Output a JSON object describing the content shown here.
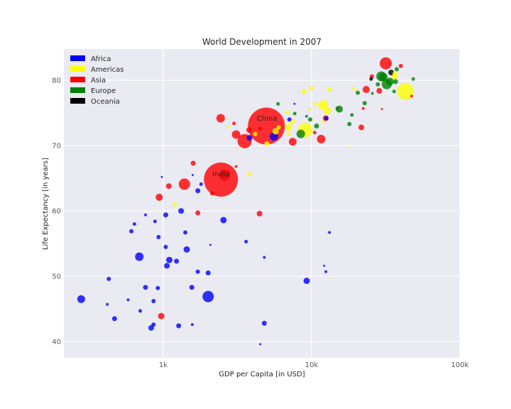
{
  "chart_data": {
    "type": "scatter",
    "title": "World Development in 2007",
    "xlabel": "GDP per Capita [in USD]",
    "ylabel": "Life Expectancy [in years]",
    "xscale": "log",
    "xlim": [
      214,
      100000
    ],
    "ylim": [
      37.5,
      84.8
    ],
    "xticks": [
      {
        "value": 1000,
        "label": "1k"
      },
      {
        "value": 10000,
        "label": "10k"
      },
      {
        "value": 100000,
        "label": "100k"
      }
    ],
    "yticks": [
      40,
      50,
      60,
      70,
      80
    ],
    "grid": true,
    "background": "#EAEAF2",
    "legend": {
      "position": "upper left",
      "entries": [
        {
          "label": "Africa",
          "color": "#0000FF"
        },
        {
          "label": "Americas",
          "color": "#FFFF00"
        },
        {
          "label": "Asia",
          "color": "#FF0000"
        },
        {
          "label": "Europe",
          "color": "#008000"
        },
        {
          "label": "Oceania",
          "color": "#000000"
        }
      ]
    },
    "annotations": [
      {
        "text": "China",
        "gdp": 5000,
        "life": 73.8
      },
      {
        "text": "India",
        "gdp": 2450,
        "life": 65.3
      }
    ],
    "size_note": "bubble radius in pixels approximates population",
    "points": [
      {
        "c": "Asia",
        "gdp": 4960,
        "life": 73.0,
        "r": 26
      },
      {
        "c": "Asia",
        "gdp": 2450,
        "life": 64.8,
        "r": 24
      },
      {
        "c": "Americas",
        "gdp": 42950,
        "life": 78.3,
        "r": 12
      },
      {
        "c": "Asia",
        "gdp": 3540,
        "life": 70.7,
        "r": 10
      },
      {
        "c": "Americas",
        "gdp": 9070,
        "life": 72.4,
        "r": 10
      },
      {
        "c": "Asia",
        "gdp": 31660,
        "life": 82.6,
        "r": 8.5
      },
      {
        "c": "Asia",
        "gdp": 2600,
        "life": 65.5,
        "r": 8
      },
      {
        "c": "Asia",
        "gdp": 1390,
        "life": 64.1,
        "r": 8
      },
      {
        "c": "Africa",
        "gdp": 2010,
        "life": 46.9,
        "r": 8
      },
      {
        "c": "Africa",
        "gdp": 690,
        "life": 53.0,
        "r": 6
      },
      {
        "c": "Africa",
        "gdp": 280,
        "life": 46.5,
        "r": 5.5
      },
      {
        "c": "Europe",
        "gdp": 32170,
        "life": 79.4,
        "r": 7
      },
      {
        "c": "Europe",
        "gdp": 29500,
        "life": 80.6,
        "r": 7
      },
      {
        "c": "Europe",
        "gdp": 30500,
        "life": 80.5,
        "r": 6
      },
      {
        "c": "Europe",
        "gdp": 8460,
        "life": 71.8,
        "r": 6
      },
      {
        "c": "Africa",
        "gdp": 5580,
        "life": 71.4,
        "r": 6
      },
      {
        "c": "Americas",
        "gdp": 12000,
        "life": 76.2,
        "r": 7
      },
      {
        "c": "Asia",
        "gdp": 2440,
        "life": 74.2,
        "r": 6
      },
      {
        "c": "Asia",
        "gdp": 3100,
        "life": 71.7,
        "r": 6
      },
      {
        "c": "Asia",
        "gdp": 11600,
        "life": 71.0,
        "r": 6
      },
      {
        "c": "Asia",
        "gdp": 7460,
        "life": 70.6,
        "r": 5.5
      },
      {
        "c": "Americas",
        "gdp": 36300,
        "life": 80.7,
        "r": 5
      },
      {
        "c": "Americas",
        "gdp": 7000,
        "life": 72.8,
        "r": 5
      },
      {
        "c": "Americas",
        "gdp": 12800,
        "life": 75.3,
        "r": 5
      },
      {
        "c": "Europe",
        "gdp": 15400,
        "life": 75.6,
        "r": 5
      },
      {
        "c": "Europe",
        "gdp": 33700,
        "life": 79.8,
        "r": 5.5
      },
      {
        "c": "Oceania",
        "gdp": 34400,
        "life": 81.2,
        "r": 4
      },
      {
        "c": "Asia",
        "gdp": 23350,
        "life": 78.6,
        "r": 5
      },
      {
        "c": "Asia",
        "gdp": 28600,
        "life": 78.4,
        "r": 4
      },
      {
        "c": "Asia",
        "gdp": 12450,
        "life": 74.2,
        "r": 4
      },
      {
        "c": "Asia",
        "gdp": 21650,
        "life": 72.8,
        "r": 4
      },
      {
        "c": "Asia",
        "gdp": 3800,
        "life": 72.4,
        "r": 4
      },
      {
        "c": "Asia",
        "gdp": 4460,
        "life": 59.6,
        "r": 4
      },
      {
        "c": "Asia",
        "gdp": 940,
        "life": 62.1,
        "r": 5
      },
      {
        "c": "Asia",
        "gdp": 1090,
        "life": 63.8,
        "r": 4
      },
      {
        "c": "Asia",
        "gdp": 1590,
        "life": 67.3,
        "r": 3.5
      },
      {
        "c": "Asia",
        "gdp": 2140,
        "life": 62.7,
        "r": 3
      },
      {
        "c": "Asia",
        "gdp": 970,
        "life": 43.9,
        "r": 4.5
      },
      {
        "c": "Asia",
        "gdp": 1710,
        "life": 59.7,
        "r": 3.5
      },
      {
        "c": "Asia",
        "gdp": 25500,
        "life": 80.6,
        "r": 3
      },
      {
        "c": "Asia",
        "gdp": 40000,
        "life": 82.2,
        "r": 3
      },
      {
        "c": "Asia",
        "gdp": 3000,
        "life": 73.4,
        "r": 2.5
      },
      {
        "c": "Asia",
        "gdp": 22300,
        "life": 75.7,
        "r": 2
      },
      {
        "c": "Asia",
        "gdp": 29800,
        "life": 75.6,
        "r": 1.5
      },
      {
        "c": "Asia",
        "gdp": 47300,
        "life": 77.6,
        "r": 2
      },
      {
        "c": "Asia",
        "gdp": 4500,
        "life": 72.6,
        "r": 3
      },
      {
        "c": "Asia",
        "gdp": 3100,
        "life": 66.8,
        "r": 2
      },
      {
        "c": "Asia",
        "gdp": 10500,
        "life": 72.0,
        "r": 2.5
      },
      {
        "c": "Americas",
        "gdp": 5720,
        "life": 72.2,
        "r": 4.5
      },
      {
        "c": "Americas",
        "gdp": 7400,
        "life": 73.7,
        "r": 4
      },
      {
        "c": "Americas",
        "gdp": 6000,
        "life": 72.8,
        "r": 3
      },
      {
        "c": "Americas",
        "gdp": 10000,
        "life": 78.8,
        "r": 3
      },
      {
        "c": "Americas",
        "gdp": 8900,
        "life": 78.3,
        "r": 3.5
      },
      {
        "c": "Americas",
        "gdp": 13200,
        "life": 78.6,
        "r": 3.5
      },
      {
        "c": "Americas",
        "gdp": 36300,
        "life": 81.0,
        "r": 3
      },
      {
        "c": "Americas",
        "gdp": 3820,
        "life": 65.6,
        "r": 3
      },
      {
        "c": "Americas",
        "gdp": 1200,
        "life": 61.0,
        "r": 3
      },
      {
        "c": "Americas",
        "gdp": 5000,
        "life": 70.3,
        "r": 3.5
      },
      {
        "c": "Americas",
        "gdp": 4170,
        "life": 71.8,
        "r": 3
      },
      {
        "c": "Americas",
        "gdp": 6870,
        "life": 75.1,
        "r": 3
      },
      {
        "c": "Americas",
        "gdp": 10600,
        "life": 76.4,
        "r": 2.5
      },
      {
        "c": "Americas",
        "gdp": 18000,
        "life": 69.8,
        "r": 1.5
      },
      {
        "c": "Americas",
        "gdp": 19300,
        "life": 78.7,
        "r": 2.5
      },
      {
        "c": "Americas",
        "gdp": 9800,
        "life": 75.6,
        "r": 2
      },
      {
        "c": "Americas",
        "gdp": 11900,
        "life": 73.7,
        "r": 2
      },
      {
        "c": "Americas",
        "gdp": 2750,
        "life": 72.9,
        "r": 2
      },
      {
        "c": "Americas",
        "gdp": 7010,
        "life": 71.8,
        "r": 2.5
      },
      {
        "c": "Europe",
        "gdp": 10800,
        "life": 73.0,
        "r": 3.5
      },
      {
        "c": "Europe",
        "gdp": 18000,
        "life": 73.3,
        "r": 3
      },
      {
        "c": "Europe",
        "gdp": 20500,
        "life": 78.1,
        "r": 3
      },
      {
        "c": "Europe",
        "gdp": 22800,
        "life": 76.5,
        "r": 3
      },
      {
        "c": "Europe",
        "gdp": 28000,
        "life": 79.4,
        "r": 3
      },
      {
        "c": "Europe",
        "gdp": 36800,
        "life": 79.8,
        "r": 3.5
      },
      {
        "c": "Europe",
        "gdp": 37500,
        "life": 81.7,
        "r": 3
      },
      {
        "c": "Europe",
        "gdp": 48500,
        "life": 80.2,
        "r": 2.5
      },
      {
        "c": "Europe",
        "gdp": 36000,
        "life": 78.3,
        "r": 2.5
      },
      {
        "c": "Europe",
        "gdp": 9800,
        "life": 74.0,
        "r": 3
      },
      {
        "c": "Europe",
        "gdp": 7700,
        "life": 74.9,
        "r": 2.5
      },
      {
        "c": "Europe",
        "gdp": 5940,
        "life": 76.4,
        "r": 2.5
      },
      {
        "c": "Europe",
        "gdp": 9250,
        "life": 74.5,
        "r": 2
      },
      {
        "c": "Europe",
        "gdp": 18700,
        "life": 74.7,
        "r": 2.5
      },
      {
        "c": "Europe",
        "gdp": 25700,
        "life": 78.0,
        "r": 2
      },
      {
        "c": "Europe",
        "gdp": 14900,
        "life": 75.7,
        "r": 2.5
      },
      {
        "c": "Oceania",
        "gdp": 25200,
        "life": 80.2,
        "r": 2.5
      },
      {
        "c": "Africa",
        "gdp": 3820,
        "life": 71.2,
        "r": 4
      },
      {
        "c": "Africa",
        "gdp": 7090,
        "life": 74.0,
        "r": 3
      },
      {
        "c": "Africa",
        "gdp": 7670,
        "life": 76.4,
        "r": 1.5
      },
      {
        "c": "Africa",
        "gdp": 12600,
        "life": 74.2,
        "r": 3
      },
      {
        "c": "Africa",
        "gdp": 9270,
        "life": 49.3,
        "r": 4.5
      },
      {
        "c": "Africa",
        "gdp": 2550,
        "life": 58.6,
        "r": 4.5
      },
      {
        "c": "Africa",
        "gdp": 1440,
        "life": 54.1,
        "r": 4.5
      },
      {
        "c": "Africa",
        "gdp": 1320,
        "life": 60.0,
        "r": 4
      },
      {
        "c": "Africa",
        "gdp": 1040,
        "life": 59.4,
        "r": 3.5
      },
      {
        "c": "Africa",
        "gdp": 1710,
        "life": 63.1,
        "r": 3.5
      },
      {
        "c": "Africa",
        "gdp": 1800,
        "life": 64.1,
        "r": 2.5
      },
      {
        "c": "Africa",
        "gdp": 1100,
        "life": 52.5,
        "r": 4.5
      },
      {
        "c": "Africa",
        "gdp": 1060,
        "life": 51.6,
        "r": 4
      },
      {
        "c": "Africa",
        "gdp": 1230,
        "life": 52.3,
        "r": 3.5
      },
      {
        "c": "Africa",
        "gdp": 1560,
        "life": 48.3,
        "r": 3.5
      },
      {
        "c": "Africa",
        "gdp": 1710,
        "life": 50.7,
        "r": 3
      },
      {
        "c": "Africa",
        "gdp": 2010,
        "life": 50.5,
        "r": 3.5
      },
      {
        "c": "Africa",
        "gdp": 1410,
        "life": 56.7,
        "r": 3
      },
      {
        "c": "Africa",
        "gdp": 930,
        "life": 56.0,
        "r": 3
      },
      {
        "c": "Africa",
        "gdp": 1040,
        "life": 54.5,
        "r": 3
      },
      {
        "c": "Africa",
        "gdp": 880,
        "life": 58.4,
        "r": 2.5
      },
      {
        "c": "Africa",
        "gdp": 610,
        "life": 56.9,
        "r": 3
      },
      {
        "c": "Africa",
        "gdp": 640,
        "life": 58.0,
        "r": 2.5
      },
      {
        "c": "Africa",
        "gdp": 760,
        "life": 59.4,
        "r": 2
      },
      {
        "c": "Africa",
        "gdp": 980,
        "life": 65.2,
        "r": 1.5
      },
      {
        "c": "Africa",
        "gdp": 1580,
        "life": 65.5,
        "r": 1.5
      },
      {
        "c": "Africa",
        "gdp": 3620,
        "life": 55.3,
        "r": 2.5
      },
      {
        "c": "Africa",
        "gdp": 2080,
        "life": 54.8,
        "r": 1.5
      },
      {
        "c": "Africa",
        "gdp": 4800,
        "life": 52.9,
        "r": 2
      },
      {
        "c": "Africa",
        "gdp": 13200,
        "life": 56.7,
        "r": 2
      },
      {
        "c": "Africa",
        "gdp": 12150,
        "life": 51.6,
        "r": 1.5
      },
      {
        "c": "Africa",
        "gdp": 12500,
        "life": 50.7,
        "r": 2
      },
      {
        "c": "Africa",
        "gdp": 430,
        "life": 49.6,
        "r": 3
      },
      {
        "c": "Africa",
        "gdp": 760,
        "life": 48.3,
        "r": 3.5
      },
      {
        "c": "Africa",
        "gdp": 920,
        "life": 48.2,
        "r": 3
      },
      {
        "c": "Africa",
        "gdp": 580,
        "life": 46.4,
        "r": 2
      },
      {
        "c": "Africa",
        "gdp": 860,
        "life": 46.2,
        "r": 3
      },
      {
        "c": "Africa",
        "gdp": 420,
        "life": 45.7,
        "r": 2
      },
      {
        "c": "Africa",
        "gdp": 700,
        "life": 44.7,
        "r": 2.5
      },
      {
        "c": "Africa",
        "gdp": 470,
        "life": 43.5,
        "r": 3.5
      },
      {
        "c": "Africa",
        "gdp": 860,
        "life": 42.6,
        "r": 3
      },
      {
        "c": "Africa",
        "gdp": 830,
        "life": 42.1,
        "r": 4
      },
      {
        "c": "Africa",
        "gdp": 1270,
        "life": 42.4,
        "r": 3.5
      },
      {
        "c": "Africa",
        "gdp": 1570,
        "life": 42.6,
        "r": 2
      },
      {
        "c": "Africa",
        "gdp": 4800,
        "life": 42.8,
        "r": 3.5
      },
      {
        "c": "Africa",
        "gdp": 4510,
        "life": 39.6,
        "r": 1.5
      }
    ]
  }
}
